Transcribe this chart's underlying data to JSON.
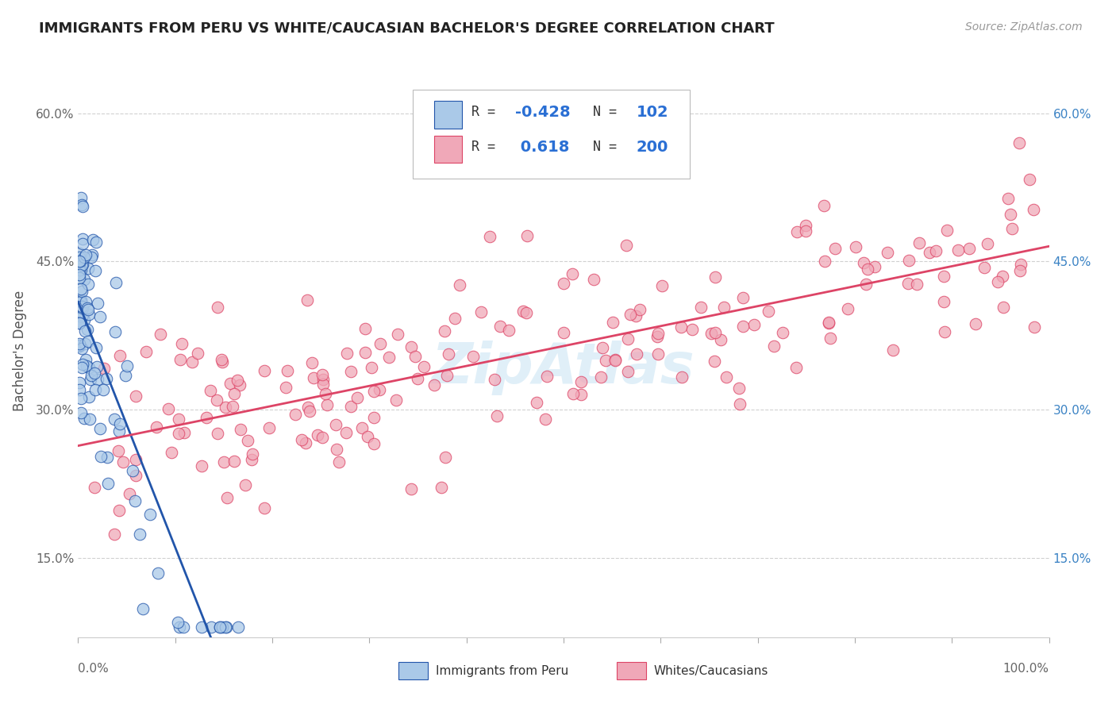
{
  "title": "IMMIGRANTS FROM PERU VS WHITE/CAUCASIAN BACHELOR'S DEGREE CORRELATION CHART",
  "source": "Source: ZipAtlas.com",
  "ylabel": "Bachelor's Degree",
  "xlim": [
    0.0,
    1.0
  ],
  "ylim": [
    0.07,
    0.65
  ],
  "yticks": [
    0.15,
    0.3,
    0.45,
    0.6
  ],
  "ytick_labels": [
    "15.0%",
    "30.0%",
    "45.0%",
    "60.0%"
  ],
  "xticks": [
    0.0,
    0.1,
    0.2,
    0.3,
    0.4,
    0.5,
    0.6,
    0.7,
    0.8,
    0.9,
    1.0
  ],
  "xtick_labels": [
    "",
    "",
    "",
    "",
    "",
    "",
    "",
    "",
    "",
    "",
    ""
  ],
  "right_yticks": [
    0.15,
    0.3,
    0.45,
    0.6
  ],
  "right_ytick_labels": [
    "15.0%",
    "30.0%",
    "45.0%",
    "60.0%"
  ],
  "blue_color": "#aac9e8",
  "pink_color": "#f0a8b8",
  "blue_line_color": "#2255aa",
  "pink_line_color": "#dd4466",
  "watermark": "ZipAtlas",
  "grid_color": "#cccccc",
  "background_color": "#ffffff"
}
